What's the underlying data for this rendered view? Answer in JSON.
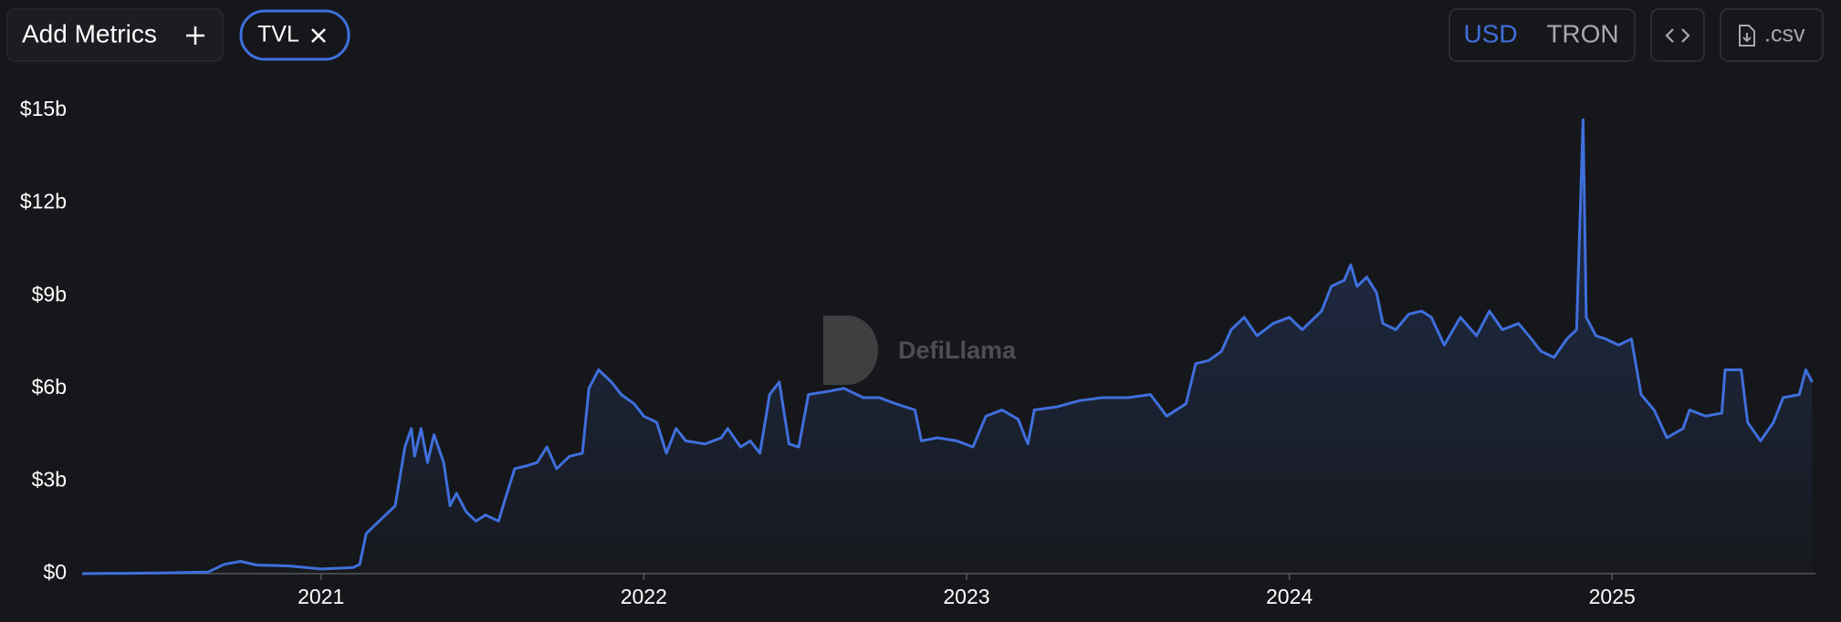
{
  "toolbar": {
    "add_metrics": "Add Metrics",
    "currencies": [
      "USD",
      "TRON"
    ],
    "csv": ".csv"
  },
  "watermark": "DefiLlama",
  "chart_data": {
    "type": "line",
    "x": [
      2020.26,
      2020.5,
      2020.65,
      2020.7,
      2020.75,
      2020.8,
      2020.9,
      2021.0,
      2021.1,
      2021.12,
      2021.14,
      2021.17,
      2021.2,
      2021.23,
      2021.26,
      2021.28,
      2021.29,
      2021.31,
      2021.33,
      2021.35,
      2021.38,
      2021.4,
      2021.42,
      2021.45,
      2021.48,
      2021.51,
      2021.55,
      2021.57,
      2021.6,
      2021.64,
      2021.67,
      2021.7,
      2021.73,
      2021.77,
      2021.81,
      2021.83,
      2021.86,
      2021.9,
      2021.93,
      2021.97,
      2022.0,
      2022.04,
      2022.07,
      2022.1,
      2022.13,
      2022.19,
      2022.24,
      2022.26,
      2022.3,
      2022.33,
      2022.36,
      2022.39,
      2022.42,
      2022.45,
      2022.48,
      2022.51,
      2022.57,
      2022.62,
      2022.68,
      2022.73,
      2022.78,
      2022.84,
      2022.86,
      2022.91,
      2022.97,
      2023.02,
      2023.06,
      2023.11,
      2023.16,
      2023.19,
      2023.21,
      2023.28,
      2023.35,
      2023.42,
      2023.5,
      2023.57,
      2023.62,
      2023.68,
      2023.71,
      2023.75,
      2023.79,
      2023.82,
      2023.86,
      2023.9,
      2023.95,
      2024.0,
      2024.04,
      2024.1,
      2024.13,
      2024.17,
      2024.19,
      2024.21,
      2024.24,
      2024.27,
      2024.29,
      2024.33,
      2024.37,
      2024.41,
      2024.44,
      2024.48,
      2024.53,
      2024.58,
      2024.62,
      2024.66,
      2024.71,
      2024.75,
      2024.78,
      2024.82,
      2024.86,
      2024.89,
      2024.91,
      2024.92,
      2024.95,
      2024.98,
      2025.02,
      2025.06,
      2025.09,
      2025.13,
      2025.17,
      2025.22,
      2025.24,
      2025.29,
      2025.34,
      2025.35,
      2025.4,
      2025.42,
      2025.46,
      2025.5,
      2025.53,
      2025.58,
      2025.6,
      2025.62
    ],
    "series": [
      {
        "name": "TVL",
        "color": "#3f6fdc",
        "values": [
          0,
          0.02,
          0.05,
          0.3,
          0.4,
          0.28,
          0.25,
          0.15,
          0.2,
          0.3,
          1.3,
          1.6,
          1.9,
          2.2,
          4.1,
          4.7,
          3.8,
          4.7,
          3.6,
          4.5,
          3.6,
          2.2,
          2.6,
          2.0,
          1.7,
          1.9,
          1.7,
          2.4,
          3.4,
          3.5,
          3.6,
          4.1,
          3.4,
          3.8,
          3.9,
          6.0,
          6.6,
          6.2,
          5.8,
          5.5,
          5.1,
          4.9,
          3.9,
          4.7,
          4.3,
          4.2,
          4.4,
          4.7,
          4.1,
          4.3,
          3.9,
          5.8,
          6.2,
          4.2,
          4.1,
          5.8,
          5.9,
          6.0,
          5.7,
          5.7,
          5.5,
          5.3,
          4.3,
          4.4,
          4.3,
          4.1,
          5.1,
          5.3,
          5.0,
          4.2,
          5.3,
          5.4,
          5.6,
          5.7,
          5.7,
          5.8,
          5.1,
          5.5,
          6.8,
          6.9,
          7.2,
          7.9,
          8.3,
          7.7,
          8.1,
          8.3,
          7.9,
          8.5,
          9.3,
          9.5,
          10.0,
          9.3,
          9.6,
          9.1,
          8.1,
          7.9,
          8.4,
          8.5,
          8.3,
          7.4,
          8.3,
          7.7,
          8.5,
          7.9,
          8.1,
          7.6,
          7.2,
          7.0,
          7.6,
          7.9,
          14.7,
          8.3,
          7.7,
          7.6,
          7.4,
          7.6,
          5.8,
          5.3,
          4.4,
          4.7,
          5.3,
          5.1,
          5.2,
          6.6,
          6.6,
          4.9,
          4.3,
          4.9,
          5.7,
          5.8,
          6.6,
          6.2
        ]
      }
    ],
    "xlim": [
      2020.26,
      2025.63
    ],
    "ylim": [
      0,
      15
    ],
    "xticks": [
      2021,
      2022,
      2023,
      2024,
      2025
    ],
    "yticks": [
      {
        "value": 0,
        "label": "$0"
      },
      {
        "value": 3,
        "label": "$3b"
      },
      {
        "value": 6,
        "label": "$6b"
      },
      {
        "value": 9,
        "label": "$9b"
      },
      {
        "value": 12,
        "label": "$12b"
      },
      {
        "value": 15,
        "label": "$15b"
      }
    ],
    "grid": false
  }
}
